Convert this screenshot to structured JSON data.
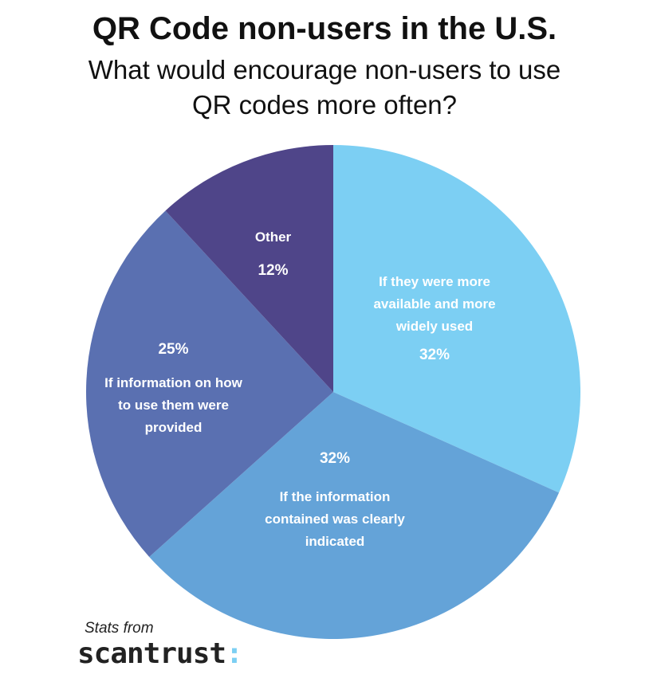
{
  "chart_data": {
    "type": "pie",
    "title": "QR Code non-users in the U.S.",
    "subtitle": "What would encourage non-users to use QR codes more often?",
    "slices": [
      {
        "label": "If they were more available and more widely used",
        "value": 32,
        "display": "32%",
        "color": "#7ccff3"
      },
      {
        "label": "If the information contained was clearly indicated",
        "value": 32,
        "display": "32%",
        "color": "#64a3d8"
      },
      {
        "label": "If information on how to use them were provided",
        "value": 25,
        "display": "25%",
        "color": "#5a70b1"
      },
      {
        "label": "Other",
        "value": 12,
        "display": "12%",
        "color": "#4f4589"
      }
    ],
    "start_angle": "12 o'clock, clockwise"
  },
  "footer": {
    "stats_from": "Stats from",
    "brand": "scantrust",
    "brand_colon": ":"
  }
}
